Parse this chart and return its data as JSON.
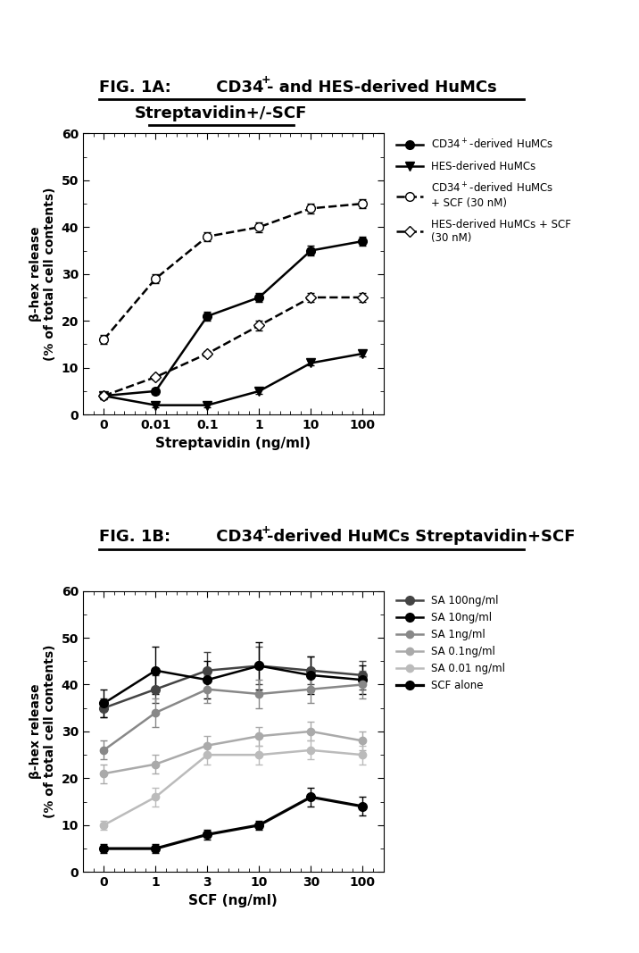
{
  "plot1a_xlabel": "Streptavidin (ng/ml)",
  "plot1a_ylabel": "β-hex release\n(% of total cell contents)",
  "plot1a_ylim": [
    0,
    60
  ],
  "plot1a_yticks": [
    0,
    10,
    20,
    30,
    40,
    50,
    60
  ],
  "plot1a_xtick_labels": [
    "0",
    "0.01",
    "0.1",
    "1",
    "10",
    "100"
  ],
  "plot1a_xvals": [
    0,
    1,
    2,
    3,
    4,
    5
  ],
  "cd34_solid_y": [
    4,
    5,
    21,
    25,
    35,
    37
  ],
  "cd34_solid_err": [
    0.8,
    0.5,
    1,
    1,
    1,
    1
  ],
  "hes_solid_y": [
    4,
    2,
    2,
    5,
    11,
    13
  ],
  "hes_solid_err": [
    0.5,
    0.5,
    0.5,
    0.5,
    0.5,
    0.5
  ],
  "cd34_scf_y": [
    16,
    29,
    38,
    40,
    44,
    45
  ],
  "cd34_scf_err": [
    1,
    1,
    1,
    1,
    1,
    1
  ],
  "hes_scf_y": [
    4,
    8,
    13,
    19,
    25,
    25
  ],
  "hes_scf_err": [
    0.5,
    0.5,
    0.5,
    1,
    1,
    1
  ],
  "plot1b_xlabel": "SCF (ng/ml)",
  "plot1b_ylabel": "β-hex release\n(% of total cell contents)",
  "plot1b_ylim": [
    0,
    60
  ],
  "plot1b_yticks": [
    0,
    10,
    20,
    30,
    40,
    50,
    60
  ],
  "plot1b_xtick_labels": [
    "0",
    "1",
    "3",
    "10",
    "30",
    "100"
  ],
  "plot1b_xvals": [
    0,
    1,
    2,
    3,
    4,
    5
  ],
  "sa100_y": [
    35,
    39,
    43,
    44,
    43,
    42
  ],
  "sa100_err": [
    2,
    3,
    4,
    4,
    3,
    3
  ],
  "sa10_y": [
    36,
    43,
    41,
    44,
    42,
    41
  ],
  "sa10_err": [
    3,
    5,
    4,
    5,
    4,
    3
  ],
  "sa1_y": [
    26,
    34,
    39,
    38,
    39,
    40
  ],
  "sa1_err": [
    2,
    3,
    3,
    3,
    3,
    3
  ],
  "sa01_y": [
    21,
    23,
    27,
    29,
    30,
    28
  ],
  "sa01_err": [
    2,
    2,
    2,
    2,
    2,
    2
  ],
  "sa001_y": [
    10,
    16,
    25,
    25,
    26,
    25
  ],
  "sa001_err": [
    1,
    2,
    2,
    2,
    2,
    2
  ],
  "scf_y": [
    5,
    5,
    8,
    10,
    16,
    14
  ],
  "scf_err": [
    1,
    1,
    1,
    1,
    2,
    2
  ],
  "title1a_part1": "FIG. 1A:",
  "title1a_part2": " CD34",
  "title1a_sup": "+",
  "title1a_part3": "- and HES-derived HuMCs",
  "title1a_line2": "Streptavidin+/-SCF",
  "title1b_part1": "FIG. 1B:",
  "title1b_part2": " CD34",
  "title1b_sup": "+",
  "title1b_part3": "-derived HuMCs Streptavidin+SCF",
  "legend1a": [
    "CD34$^+$-derived HuMCs",
    "HES-derived HuMCs",
    "CD34$^+$-derived HuMCs\n+ SCF (30 nM)",
    "HES-derived HuMCs + SCF\n(30 nM)"
  ],
  "legend1b": [
    "SA 100ng/ml",
    "SA 10ng/ml",
    "SA 1ng/ml",
    "SA 0.1ng/ml",
    "SA 0.01 ng/ml",
    "SCF alone"
  ],
  "gray1": "#444444",
  "gray2": "#888888",
  "gray3": "#aaaaaa",
  "gray4": "#bbbbbb"
}
